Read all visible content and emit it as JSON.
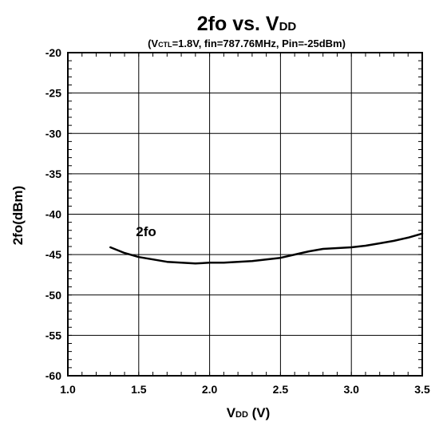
{
  "chart_data": {
    "type": "line",
    "title": {
      "main": "2fo vs. V",
      "sub": "DD"
    },
    "subtitle": {
      "open": "(V",
      "sub": "CTL",
      "rest": "=1.8V, fin=787.76MHz, Pin=-25dBm)"
    },
    "xlabel": {
      "main": "V",
      "sub": "DD",
      "unit": " (V)"
    },
    "ylabel": "2fo(dBm)",
    "xlim": [
      1.0,
      3.5
    ],
    "ylim": [
      -60,
      -20
    ],
    "x_ticks": [
      {
        "value": 1.0,
        "label": "1.0"
      },
      {
        "value": 1.5,
        "label": "1.5"
      },
      {
        "value": 2.0,
        "label": "2.0"
      },
      {
        "value": 2.5,
        "label": "2.5"
      },
      {
        "value": 3.0,
        "label": "3.0"
      },
      {
        "value": 3.5,
        "label": "3.5"
      }
    ],
    "y_ticks": [
      {
        "value": -20,
        "label": "-20"
      },
      {
        "value": -25,
        "label": "-25"
      },
      {
        "value": -30,
        "label": "-30"
      },
      {
        "value": -35,
        "label": "-35"
      },
      {
        "value": -40,
        "label": "-40"
      },
      {
        "value": -45,
        "label": "-45"
      },
      {
        "value": -50,
        "label": "-50"
      },
      {
        "value": -55,
        "label": "-55"
      },
      {
        "value": -60,
        "label": "-60"
      }
    ],
    "grid": true,
    "series": [
      {
        "name": "2fo",
        "color": "#000000",
        "x": [
          1.3,
          1.4,
          1.5,
          1.6,
          1.7,
          1.8,
          1.9,
          2.0,
          2.1,
          2.2,
          2.3,
          2.4,
          2.5,
          2.6,
          2.7,
          2.8,
          2.9,
          3.0,
          3.1,
          3.2,
          3.3,
          3.4,
          3.5
        ],
        "y": [
          -44.1,
          -44.8,
          -45.3,
          -45.6,
          -45.9,
          -46.0,
          -46.1,
          -46.0,
          -46.0,
          -45.9,
          -45.8,
          -45.6,
          -45.4,
          -45.0,
          -44.6,
          -44.3,
          -44.2,
          -44.1,
          -43.9,
          -43.6,
          -43.3,
          -42.9,
          -42.4
        ]
      }
    ],
    "annotations": [
      {
        "text": "2fo",
        "x": 1.48,
        "y": -42.7
      }
    ]
  }
}
